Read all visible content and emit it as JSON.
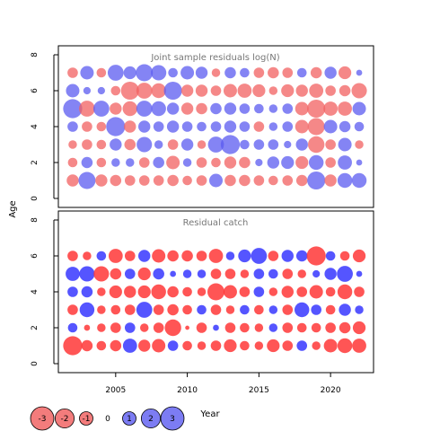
{
  "chart_data": [
    {
      "type": "scatter",
      "title": "Joint sample residuals log(N)",
      "ylabel": "Age",
      "xlabel": "",
      "xlim": [
        2001,
        2023
      ],
      "ylim": [
        -0.5,
        8.5
      ],
      "yticks": [
        0,
        2,
        4,
        6,
        8
      ],
      "ages": [
        1,
        2,
        3,
        4,
        5,
        6,
        7
      ],
      "years": [
        2002,
        2003,
        2004,
        2005,
        2006,
        2007,
        2008,
        2009,
        2010,
        2011,
        2012,
        2013,
        2014,
        2015,
        2016,
        2017,
        2018,
        2019,
        2020,
        2021,
        2022
      ],
      "residuals": {
        "1": [
          -0.8,
          1.6,
          -0.8,
          -0.7,
          -0.6,
          -0.6,
          -0.6,
          -0.7,
          -0.5,
          -0.6,
          1.0,
          -0.7,
          -0.7,
          -0.6,
          -0.5,
          -0.6,
          -0.7,
          1.8,
          -0.8,
          1.2,
          1.2
        ],
        "2": [
          -0.5,
          0.7,
          -0.5,
          0.4,
          0.4,
          -0.6,
          0.7,
          -1.0,
          0.4,
          -0.6,
          -0.5,
          -0.8,
          -0.7,
          0.3,
          0.8,
          0.9,
          -0.9,
          1.2,
          -0.6,
          1.1,
          0.2
        ],
        "3": [
          -0.4,
          -0.6,
          -0.5,
          0.8,
          -0.7,
          1.3,
          0.4,
          -0.6,
          0.8,
          -0.4,
          1.4,
          2.0,
          0.5,
          0.6,
          0.6,
          0.3,
          0.8,
          -1.5,
          -0.6,
          1.0,
          -0.4
        ],
        "4": [
          0.6,
          -0.6,
          -0.5,
          2.0,
          -0.8,
          0.8,
          0.6,
          0.8,
          0.6,
          0.5,
          0.6,
          0.8,
          0.6,
          -0.6,
          0.4,
          0.6,
          -1.0,
          -1.6,
          1.0,
          0.7,
          0.5
        ],
        "5": [
          2.0,
          -1.4,
          1.4,
          -0.8,
          -1.2,
          1.4,
          1.2,
          0.8,
          -0.8,
          -0.7,
          0.7,
          0.8,
          0.6,
          0.5,
          0.4,
          0.6,
          -1.0,
          -1.8,
          -1.1,
          -1.1,
          1.0
        ],
        "6": [
          1.0,
          0.3,
          0.3,
          -0.5,
          -1.8,
          -1.4,
          -1.2,
          1.8,
          -0.8,
          -0.8,
          -0.6,
          -1.0,
          -1.1,
          -0.9,
          -0.4,
          -0.9,
          -0.8,
          -1.1,
          -0.6,
          -0.7,
          -1.3
        ],
        "7": [
          -0.6,
          1.0,
          -0.5,
          1.4,
          0.9,
          1.6,
          1.3,
          0.5,
          1.0,
          0.8,
          -0.4,
          0.7,
          0.5,
          -0.6,
          -0.7,
          -0.6,
          0.5,
          -0.7,
          0.8,
          -0.9,
          0.2
        ]
      }
    },
    {
      "type": "scatter",
      "title": "Residual catch",
      "ylabel": "Age",
      "xlabel": "Year",
      "xlim": [
        2001,
        2023
      ],
      "ylim": [
        -0.5,
        8.5
      ],
      "yticks": [
        0,
        2,
        4,
        6,
        8
      ],
      "xticks": [
        2005,
        2010,
        2015,
        2020
      ],
      "ages": [
        1,
        2,
        3,
        4,
        5,
        6
      ],
      "years": [
        2002,
        2003,
        2004,
        2005,
        2006,
        2007,
        2008,
        2009,
        2010,
        2011,
        2012,
        2013,
        2014,
        2015,
        2016,
        2017,
        2018,
        2019,
        2020,
        2021,
        2022
      ],
      "residuals": {
        "1": [
          -2.0,
          -0.7,
          -0.5,
          -0.7,
          1.1,
          -0.8,
          -1.0,
          0.6,
          -0.5,
          -0.4,
          -0.6,
          -0.9,
          -0.5,
          -0.4,
          -0.9,
          -0.6,
          0.6,
          -0.4,
          -1.0,
          -1.2,
          -1.1
        ],
        "2": [
          0.5,
          -0.2,
          -0.4,
          -0.6,
          0.6,
          -0.4,
          -0.6,
          -1.5,
          -0.1,
          -0.6,
          0.2,
          -0.6,
          -0.5,
          -0.4,
          0.4,
          -0.6,
          -0.5,
          -0.5,
          -0.6,
          -0.7,
          -0.9
        ],
        "3": [
          -0.6,
          1.2,
          -0.4,
          -0.5,
          -0.6,
          1.4,
          -0.6,
          -0.7,
          -0.5,
          0.5,
          -0.6,
          -0.4,
          0.5,
          -0.5,
          0.4,
          -0.6,
          1.2,
          0.6,
          -0.5,
          0.8,
          0.4
        ],
        "4": [
          0.6,
          0.7,
          -0.4,
          -0.9,
          -0.8,
          -0.9,
          -1.2,
          -0.7,
          -0.5,
          -0.4,
          -1.6,
          -1.0,
          -0.6,
          0.6,
          -0.4,
          -0.8,
          -0.6,
          -1.0,
          -0.5,
          -1.2,
          -0.6
        ],
        "5": [
          1.1,
          1.3,
          -1.3,
          -0.7,
          0.6,
          -0.9,
          0.7,
          0.2,
          0.4,
          0.4,
          -0.6,
          -0.6,
          -0.4,
          0.6,
          0.5,
          -0.6,
          -0.4,
          0.3,
          0.8,
          1.4,
          0.2
        ],
        "6": [
          -0.6,
          -0.4,
          0.5,
          -1.1,
          -0.6,
          0.8,
          -1.0,
          -0.7,
          -0.7,
          -0.6,
          -1.1,
          0.4,
          0.9,
          1.4,
          -0.6,
          0.8,
          0.7,
          -2.0,
          0.5,
          -0.5,
          -0.9
        ]
      }
    }
  ],
  "legend": {
    "values": [
      -3,
      -2,
      -1,
      0,
      1,
      2,
      3
    ],
    "labels": [
      "-3",
      "-2",
      "-1",
      "0",
      "1",
      "2",
      "3"
    ],
    "positive_color": "#4444ee",
    "negative_color": "#ee4444"
  },
  "colors": {
    "panel1_positive": "#5b5bf0",
    "panel1_negative": "#f26060",
    "panel2_positive": "#2f2fff",
    "panel2_negative": "#ff2f2f"
  }
}
